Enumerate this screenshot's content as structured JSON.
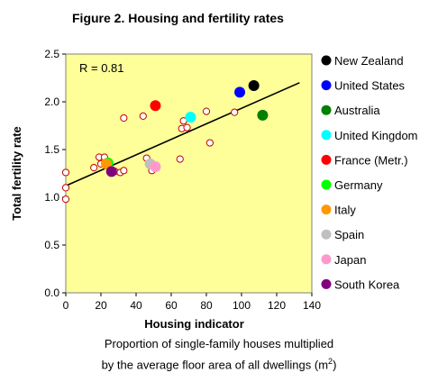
{
  "chart_data": {
    "type": "scatter",
    "title": "Figure 2. Housing and fertility rates",
    "xlabel": "Housing indicator",
    "ylabel": "Total fertility rate",
    "xlim": [
      0,
      140
    ],
    "ylim": [
      0.0,
      2.5
    ],
    "xticks": [
      0,
      20,
      40,
      60,
      80,
      100,
      120,
      140
    ],
    "yticks": [
      "0.0",
      "0.5",
      "1.0",
      "1.5",
      "2.0",
      "2.5"
    ],
    "annotation": "R = 0.81",
    "plot_background": "#FFFF99",
    "grid": false,
    "legend_position": "right",
    "trendline": {
      "x": [
        0,
        133
      ],
      "y": [
        1.12,
        2.2
      ]
    },
    "highlighted": [
      {
        "name": "New Zealand",
        "color": "#000000",
        "x": 107,
        "y": 2.17
      },
      {
        "name": "United States",
        "color": "#0000FF",
        "x": 99,
        "y": 2.1
      },
      {
        "name": "Australia",
        "color": "#008000",
        "x": 112,
        "y": 1.86
      },
      {
        "name": "United Kingdom",
        "color": "#00FFFF",
        "x": 71,
        "y": 1.84
      },
      {
        "name": "France (Metr.)",
        "color": "#FF0000",
        "x": 51,
        "y": 1.96
      },
      {
        "name": "Germany",
        "color": "#00FF00",
        "x": 24,
        "y": 1.36
      },
      {
        "name": "Italy",
        "color": "#FF9900",
        "x": 23,
        "y": 1.35
      },
      {
        "name": "Spain",
        "color": "#C0C0C0",
        "x": 48,
        "y": 1.35
      },
      {
        "name": "Japan",
        "color": "#FF99CC",
        "x": 51,
        "y": 1.32
      },
      {
        "name": "South Korea",
        "color": "#800080",
        "x": 26,
        "y": 1.27
      }
    ],
    "other_points": {
      "color": "#FFFFFF",
      "edge_color": "#C00000",
      "x": [
        0,
        0,
        0,
        16,
        19,
        20,
        22,
        28,
        31,
        33,
        33,
        44,
        46,
        49,
        65,
        66,
        67,
        69,
        80,
        82,
        96
      ],
      "y": [
        1.26,
        1.1,
        0.98,
        1.31,
        1.42,
        1.35,
        1.42,
        1.27,
        1.26,
        1.28,
        1.83,
        1.85,
        1.41,
        1.28,
        1.4,
        1.72,
        1.8,
        1.73,
        1.9,
        1.57,
        1.89
      ]
    }
  },
  "caption": {
    "line1": "Proportion of single-family houses multiplied",
    "line2": "by the average floor area of all dwellings (m",
    "line2_sup": "2",
    "line2_end": ")"
  }
}
